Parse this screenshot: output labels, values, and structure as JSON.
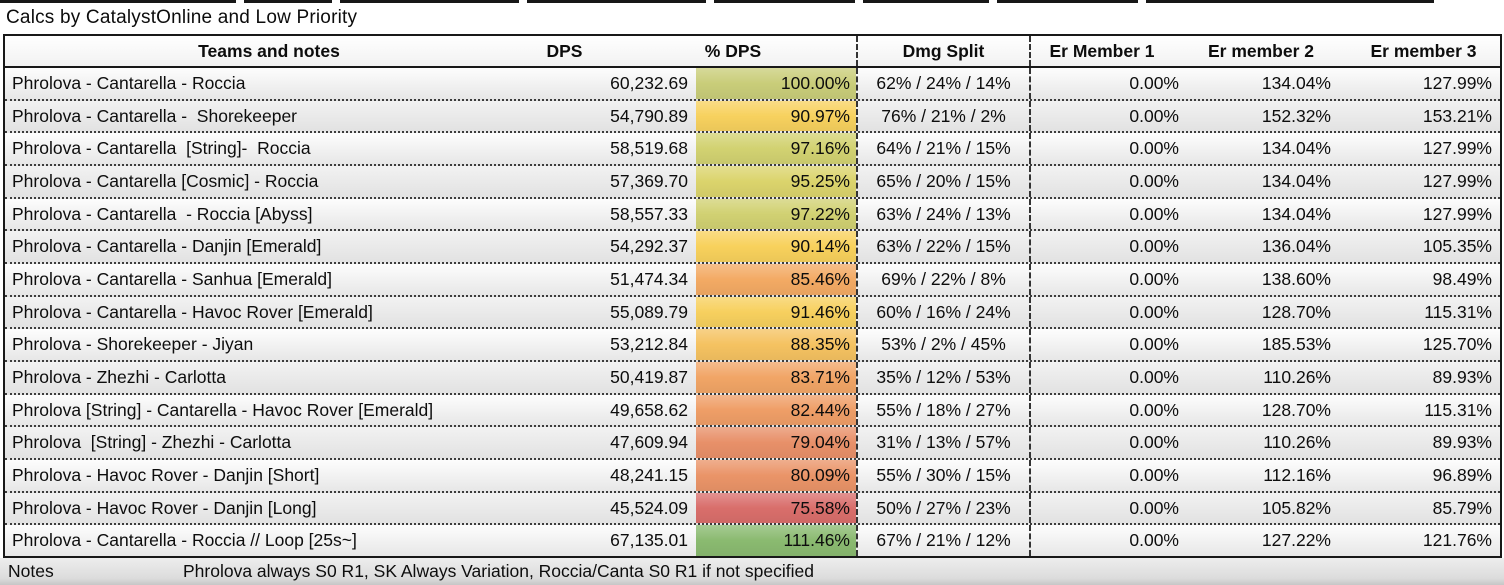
{
  "title": "Calcs by CatalystOnline and Low Priority",
  "table": {
    "columns": {
      "teams": "Teams and notes",
      "dps": "DPS",
      "pct": "% DPS",
      "split": "Dmg Split",
      "er1": "Er Member 1",
      "er2": "Er member 2",
      "er3": "Er member 3"
    },
    "rows": [
      {
        "team": "Phrolova - Cantarella - Roccia",
        "dps": "60,232.69",
        "pct": "100.00%",
        "pct_color": "#c9cd79",
        "split": "62% / 24% / 14%",
        "er1": "0.00%",
        "er2": "134.04%",
        "er3": "127.99%"
      },
      {
        "team": "Phrolova - Cantarella -  Shorekeeper",
        "dps": "54,790.89",
        "pct": "90.97%",
        "pct_color": "#f7d15e",
        "split": "76% / 21% / 2%",
        "er1": "0.00%",
        "er2": "152.32%",
        "er3": "153.21%"
      },
      {
        "team": "Phrolova - Cantarella  [String]-  Roccia",
        "dps": "58,519.68",
        "pct": "97.16%",
        "pct_color": "#d2d271",
        "split": "64% / 21% / 15%",
        "er1": "0.00%",
        "er2": "134.04%",
        "er3": "127.99%"
      },
      {
        "team": "Phrolova - Cantarella [Cosmic] - Roccia",
        "dps": "57,369.70",
        "pct": "95.25%",
        "pct_color": "#dbd46c",
        "split": "65% / 20% / 15%",
        "er1": "0.00%",
        "er2": "134.04%",
        "er3": "127.99%"
      },
      {
        "team": "Phrolova - Cantarella  - Roccia [Abyss]",
        "dps": "58,557.33",
        "pct": "97.22%",
        "pct_color": "#d1d172",
        "split": "63% / 24% / 13%",
        "er1": "0.00%",
        "er2": "134.04%",
        "er3": "127.99%"
      },
      {
        "team": "Phrolova - Cantarella - Danjin [Emerald]",
        "dps": "54,292.37",
        "pct": "90.14%",
        "pct_color": "#f8d15c",
        "split": "63% / 22% / 15%",
        "er1": "0.00%",
        "er2": "136.04%",
        "er3": "105.35%"
      },
      {
        "team": "Phrolova - Cantarella - Sanhua [Emerald]",
        "dps": "51,474.34",
        "pct": "85.46%",
        "pct_color": "#f3aa64",
        "split": "69% / 22% / 8%",
        "er1": "0.00%",
        "er2": "138.60%",
        "er3": "98.49%"
      },
      {
        "team": "Phrolova - Cantarella - Havoc Rover [Emerald]",
        "dps": "55,089.79",
        "pct": "91.46%",
        "pct_color": "#f7d05e",
        "split": "60% / 16% / 24%",
        "er1": "0.00%",
        "er2": "128.70%",
        "er3": "115.31%"
      },
      {
        "team": "Phrolova - Shorekeeper - Jiyan",
        "dps": "53,212.84",
        "pct": "88.35%",
        "pct_color": "#f5c261",
        "split": "53% / 2% / 45%",
        "er1": "0.00%",
        "er2": "185.53%",
        "er3": "125.70%"
      },
      {
        "team": "Phrolova - Zhezhi - Carlotta",
        "dps": "50,419.87",
        "pct": "83.71%",
        "pct_color": "#f1a566",
        "split": "35% / 12% / 53%",
        "er1": "0.00%",
        "er2": "110.26%",
        "er3": "89.93%"
      },
      {
        "team": "Phrolova [String] - Cantarella - Havoc Rover [Emerald]",
        "dps": "49,658.62",
        "pct": "82.44%",
        "pct_color": "#ef9e67",
        "split": "55% / 18% / 27%",
        "er1": "0.00%",
        "er2": "128.70%",
        "er3": "115.31%"
      },
      {
        "team": "Phrolova  [String] - Zhezhi - Carlotta",
        "dps": "47,609.94",
        "pct": "79.04%",
        "pct_color": "#e89069",
        "split": "31% / 13% / 57%",
        "er1": "0.00%",
        "er2": "110.26%",
        "er3": "89.93%"
      },
      {
        "team": "Phrolova - Havoc Rover - Danjin [Short]",
        "dps": "48,241.15",
        "pct": "80.09%",
        "pct_color": "#ea9468",
        "split": "55% / 30% / 15%",
        "er1": "0.00%",
        "er2": "112.16%",
        "er3": "96.89%"
      },
      {
        "team": "Phrolova - Havoc Rover - Danjin [Long]",
        "dps": "45,524.09",
        "pct": "75.58%",
        "pct_color": "#d96e6b",
        "split": "50% / 27% / 23%",
        "er1": "0.00%",
        "er2": "105.82%",
        "er3": "85.79%"
      },
      {
        "team": "Phrolova - Cantarella - Roccia // Loop [25s~]",
        "dps": "67,135.01",
        "pct": "111.46%",
        "pct_color": "#8aba70",
        "split": "67% / 21% / 12%",
        "er1": "0.00%",
        "er2": "127.22%",
        "er3": "121.76%"
      }
    ]
  },
  "footer": {
    "label": "Notes",
    "text": "Phrolova always S0 R1, SK Always Variation, Roccia/Canta S0 R1 if not specified"
  }
}
